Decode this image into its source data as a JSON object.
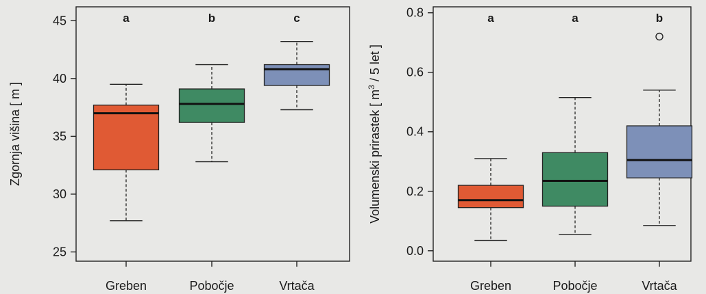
{
  "chart_data": [
    {
      "type": "box",
      "ylabel": "Zgornja višina [ m ]",
      "ylim": [
        24.2,
        46.2
      ],
      "yticks": [
        25,
        30,
        35,
        40,
        45
      ],
      "categories": [
        "Greben",
        "Pobočje",
        "Vrtača"
      ],
      "letters": [
        "a",
        "b",
        "c"
      ],
      "boxes": [
        {
          "whisker_low": 27.7,
          "q1": 32.1,
          "median": 37.0,
          "q3": 37.7,
          "whisker_high": 39.5,
          "color": "#e05a34",
          "outliers": []
        },
        {
          "whisker_low": 32.8,
          "q1": 36.2,
          "median": 37.8,
          "q3": 39.1,
          "whisker_high": 41.2,
          "color": "#3f8a63",
          "outliers": []
        },
        {
          "whisker_low": 37.3,
          "q1": 39.4,
          "median": 40.8,
          "q3": 41.2,
          "whisker_high": 43.2,
          "color": "#7d90b8",
          "outliers": []
        }
      ]
    },
    {
      "type": "box",
      "ylabel_main": "Volumenski prirastek [ m",
      "ylabel_sup": "3",
      "ylabel_tail": " / 5 let ]",
      "ylim": [
        -0.035,
        0.82
      ],
      "yticks": [
        "0.0",
        "0.2",
        "0.4",
        "0.6",
        "0.8"
      ],
      "categories": [
        "Greben",
        "Pobočje",
        "Vrtača"
      ],
      "letters": [
        "a",
        "a",
        "b"
      ],
      "boxes": [
        {
          "whisker_low": 0.035,
          "q1": 0.145,
          "median": 0.17,
          "q3": 0.22,
          "whisker_high": 0.31,
          "color": "#e05a34",
          "outliers": []
        },
        {
          "whisker_low": 0.055,
          "q1": 0.15,
          "median": 0.235,
          "q3": 0.33,
          "whisker_high": 0.515,
          "color": "#3f8a63",
          "outliers": []
        },
        {
          "whisker_low": 0.085,
          "q1": 0.245,
          "median": 0.305,
          "q3": 0.42,
          "whisker_high": 0.54,
          "color": "#7d90b8",
          "outliers": [
            0.72
          ]
        }
      ]
    }
  ]
}
